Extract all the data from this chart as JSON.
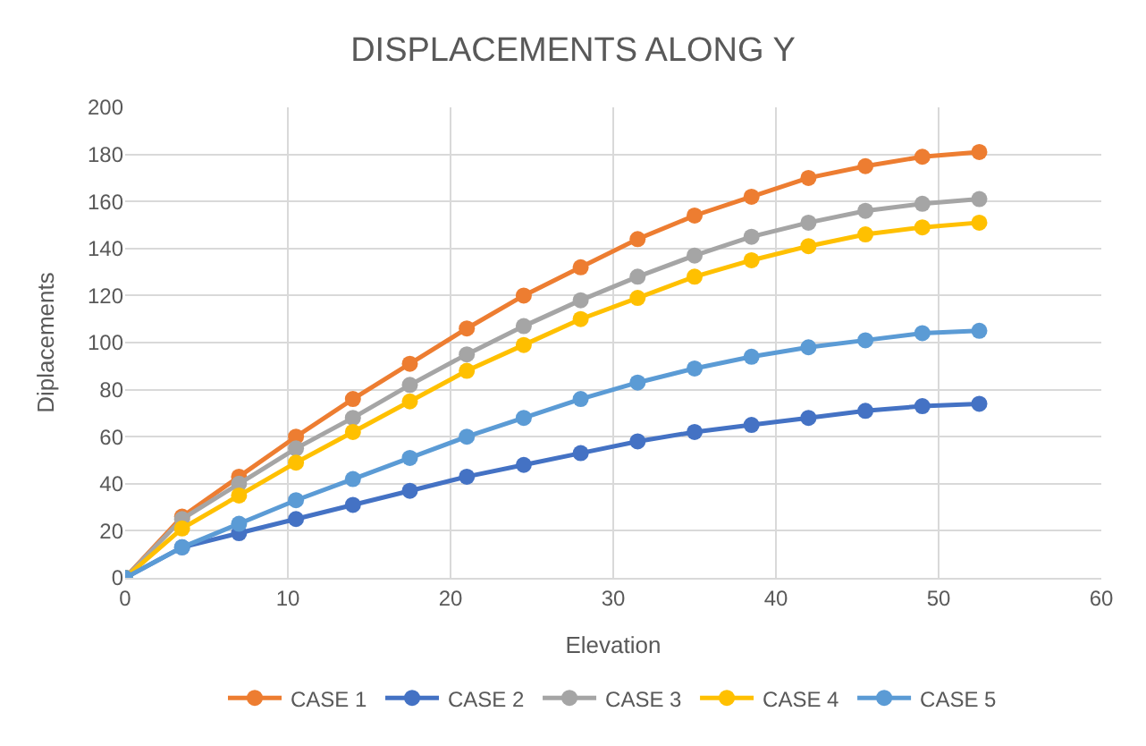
{
  "chart_data": {
    "type": "line",
    "title": "DISPLACEMENTS ALONG Y",
    "xlabel": "Elevation",
    "ylabel": "Diplacements",
    "x": [
      0,
      3.5,
      7,
      10.5,
      14,
      17.5,
      21,
      24.5,
      28,
      31.5,
      35,
      38.5,
      42,
      45.5,
      49,
      52.5
    ],
    "series": [
      {
        "name": "CASE 1",
        "color": "#ed7d31",
        "values": [
          0,
          26,
          43,
          60,
          76,
          91,
          106,
          120,
          132,
          144,
          154,
          162,
          170,
          175,
          179,
          181
        ]
      },
      {
        "name": "CASE 2",
        "color": "#4472c4",
        "values": [
          0,
          13,
          19,
          25,
          31,
          37,
          43,
          48,
          53,
          58,
          62,
          65,
          68,
          71,
          73,
          74
        ]
      },
      {
        "name": "CASE 3",
        "color": "#a5a5a5",
        "values": [
          0,
          25,
          40,
          55,
          68,
          82,
          95,
          107,
          118,
          128,
          137,
          145,
          151,
          156,
          159,
          161
        ]
      },
      {
        "name": "CASE 4",
        "color": "#ffc000",
        "values": [
          0,
          21,
          35,
          49,
          62,
          75,
          88,
          99,
          110,
          119,
          128,
          135,
          141,
          146,
          149,
          151
        ]
      },
      {
        "name": "CASE 5",
        "color": "#5b9bd5",
        "values": [
          0,
          13,
          23,
          33,
          42,
          51,
          60,
          68,
          76,
          83,
          89,
          94,
          98,
          101,
          104,
          105
        ]
      }
    ],
    "xlim": [
      0,
      60
    ],
    "xticks": [
      0,
      10,
      20,
      30,
      40,
      50,
      60
    ],
    "ylim": [
      0,
      200
    ],
    "yticks": [
      0,
      20,
      40,
      60,
      80,
      100,
      120,
      140,
      160,
      180,
      200
    ],
    "grid": true,
    "legend": "bottom",
    "marker": "circle",
    "line_style": "solid"
  }
}
